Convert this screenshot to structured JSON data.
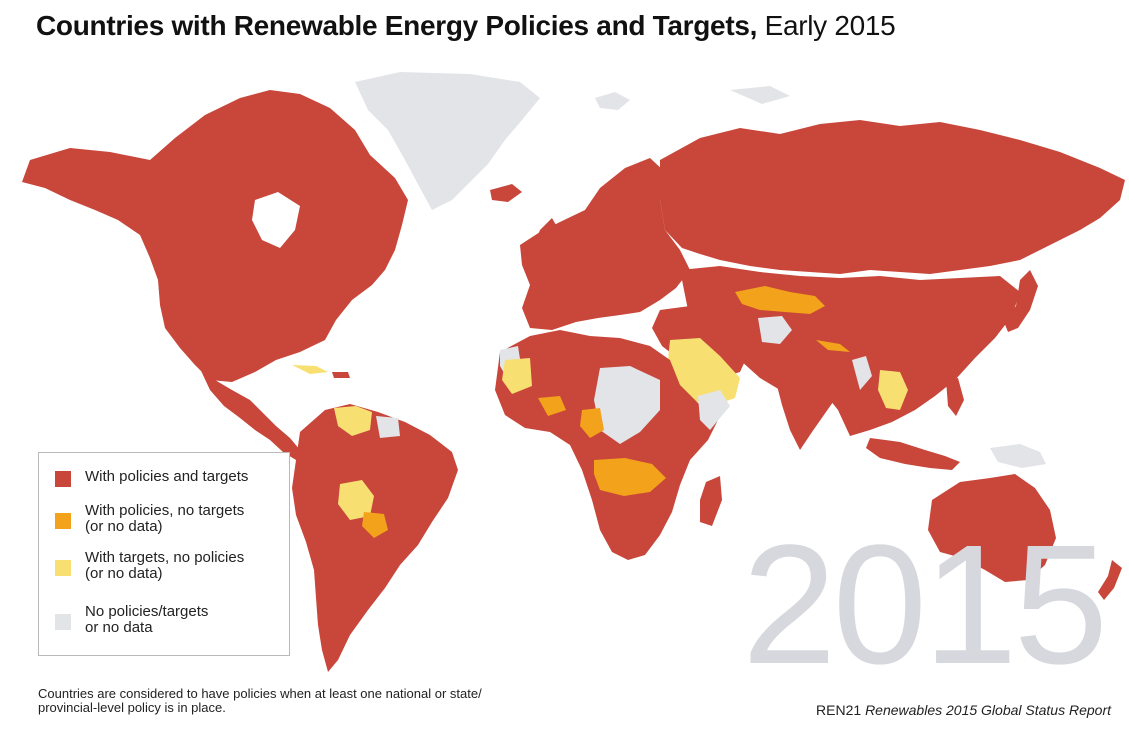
{
  "title": {
    "bold_text": "Countries with Renewable Energy Policies and Targets,",
    "light_text": "Early 2015"
  },
  "watermark_year": "2015",
  "colors": {
    "with_policies_and_targets": "#c8463a",
    "with_policies_no_targets": "#f2a21b",
    "with_targets_no_policies": "#f8df72",
    "no_policies_targets": "#e3e4e8",
    "watermark": "#d7d8de"
  },
  "legend": {
    "items": [
      {
        "lines": [
          "With policies and targets"
        ],
        "color": "#c8463a"
      },
      {
        "lines": [
          "With policies, no targets",
          "(or no data)"
        ],
        "color": "#f2a21b"
      },
      {
        "lines": [
          "With targets, no policies",
          "(or no data)"
        ],
        "color": "#f8df72"
      },
      {
        "lines": [
          "No policies/targets",
          "or no data"
        ],
        "color": "#e3e4e8"
      }
    ]
  },
  "footnote": {
    "line1": "Countries are considered to have policies when at least one national or state/",
    "line2": "provincial-level policy is in place."
  },
  "source": {
    "org": "REN21",
    "report": "Renewables 2015 Global Status Report"
  }
}
